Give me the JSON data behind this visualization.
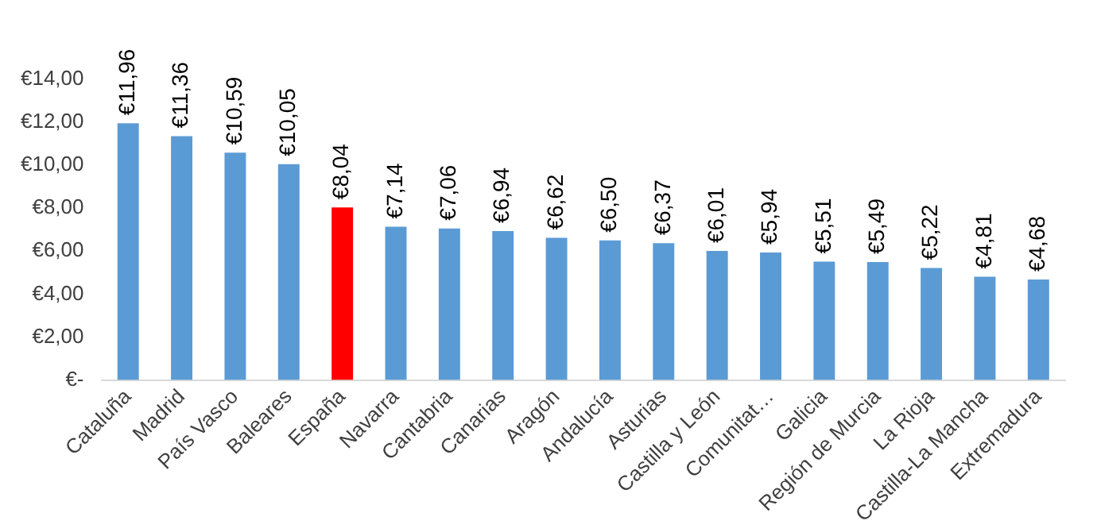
{
  "chart_data": {
    "type": "bar",
    "categories": [
      "Cataluña",
      "Madrid",
      "País Vasco",
      "Baleares",
      "España",
      "Navarra",
      "Cantabria",
      "Canarias",
      "Aragón",
      "Andalucía",
      "Asturias",
      "Castilla y León",
      "Comunitat…",
      "Galicia",
      "Región de Murcia",
      "La Rioja",
      "Castilla-La Mancha",
      "Extremadura"
    ],
    "values": [
      11.96,
      11.36,
      10.59,
      10.05,
      8.04,
      7.14,
      7.06,
      6.94,
      6.62,
      6.5,
      6.37,
      6.01,
      5.94,
      5.51,
      5.49,
      5.22,
      4.81,
      4.68
    ],
    "colors": [
      "#5b9bd5",
      "#5b9bd5",
      "#5b9bd5",
      "#5b9bd5",
      "#ff0000",
      "#5b9bd5",
      "#5b9bd5",
      "#5b9bd5",
      "#5b9bd5",
      "#5b9bd5",
      "#5b9bd5",
      "#5b9bd5",
      "#5b9bd5",
      "#5b9bd5",
      "#5b9bd5",
      "#5b9bd5",
      "#5b9bd5",
      "#5b9bd5"
    ],
    "value_labels": [
      "€11,96",
      "€11,36",
      "€10,59",
      "€10,05",
      "€8,04",
      "€7,14",
      "€7,06",
      "€6,94",
      "€6,62",
      "€6,50",
      "€6,37",
      "€6,01",
      "€5,94",
      "€5,51",
      "€5,49",
      "€5,22",
      "€4,81",
      "€4,68"
    ],
    "ylim": [
      0,
      14
    ],
    "yticks": [
      {
        "value": 0,
        "label": "€-"
      },
      {
        "value": 2,
        "label": "€2,00"
      },
      {
        "value": 4,
        "label": "€4,00"
      },
      {
        "value": 6,
        "label": "€6,00"
      },
      {
        "value": 8,
        "label": "€8,00"
      },
      {
        "value": 10,
        "label": "€10,00"
      },
      {
        "value": 12,
        "label": "€12,00"
      },
      {
        "value": 14,
        "label": "€14,00"
      }
    ],
    "grid": false,
    "legend": false
  }
}
